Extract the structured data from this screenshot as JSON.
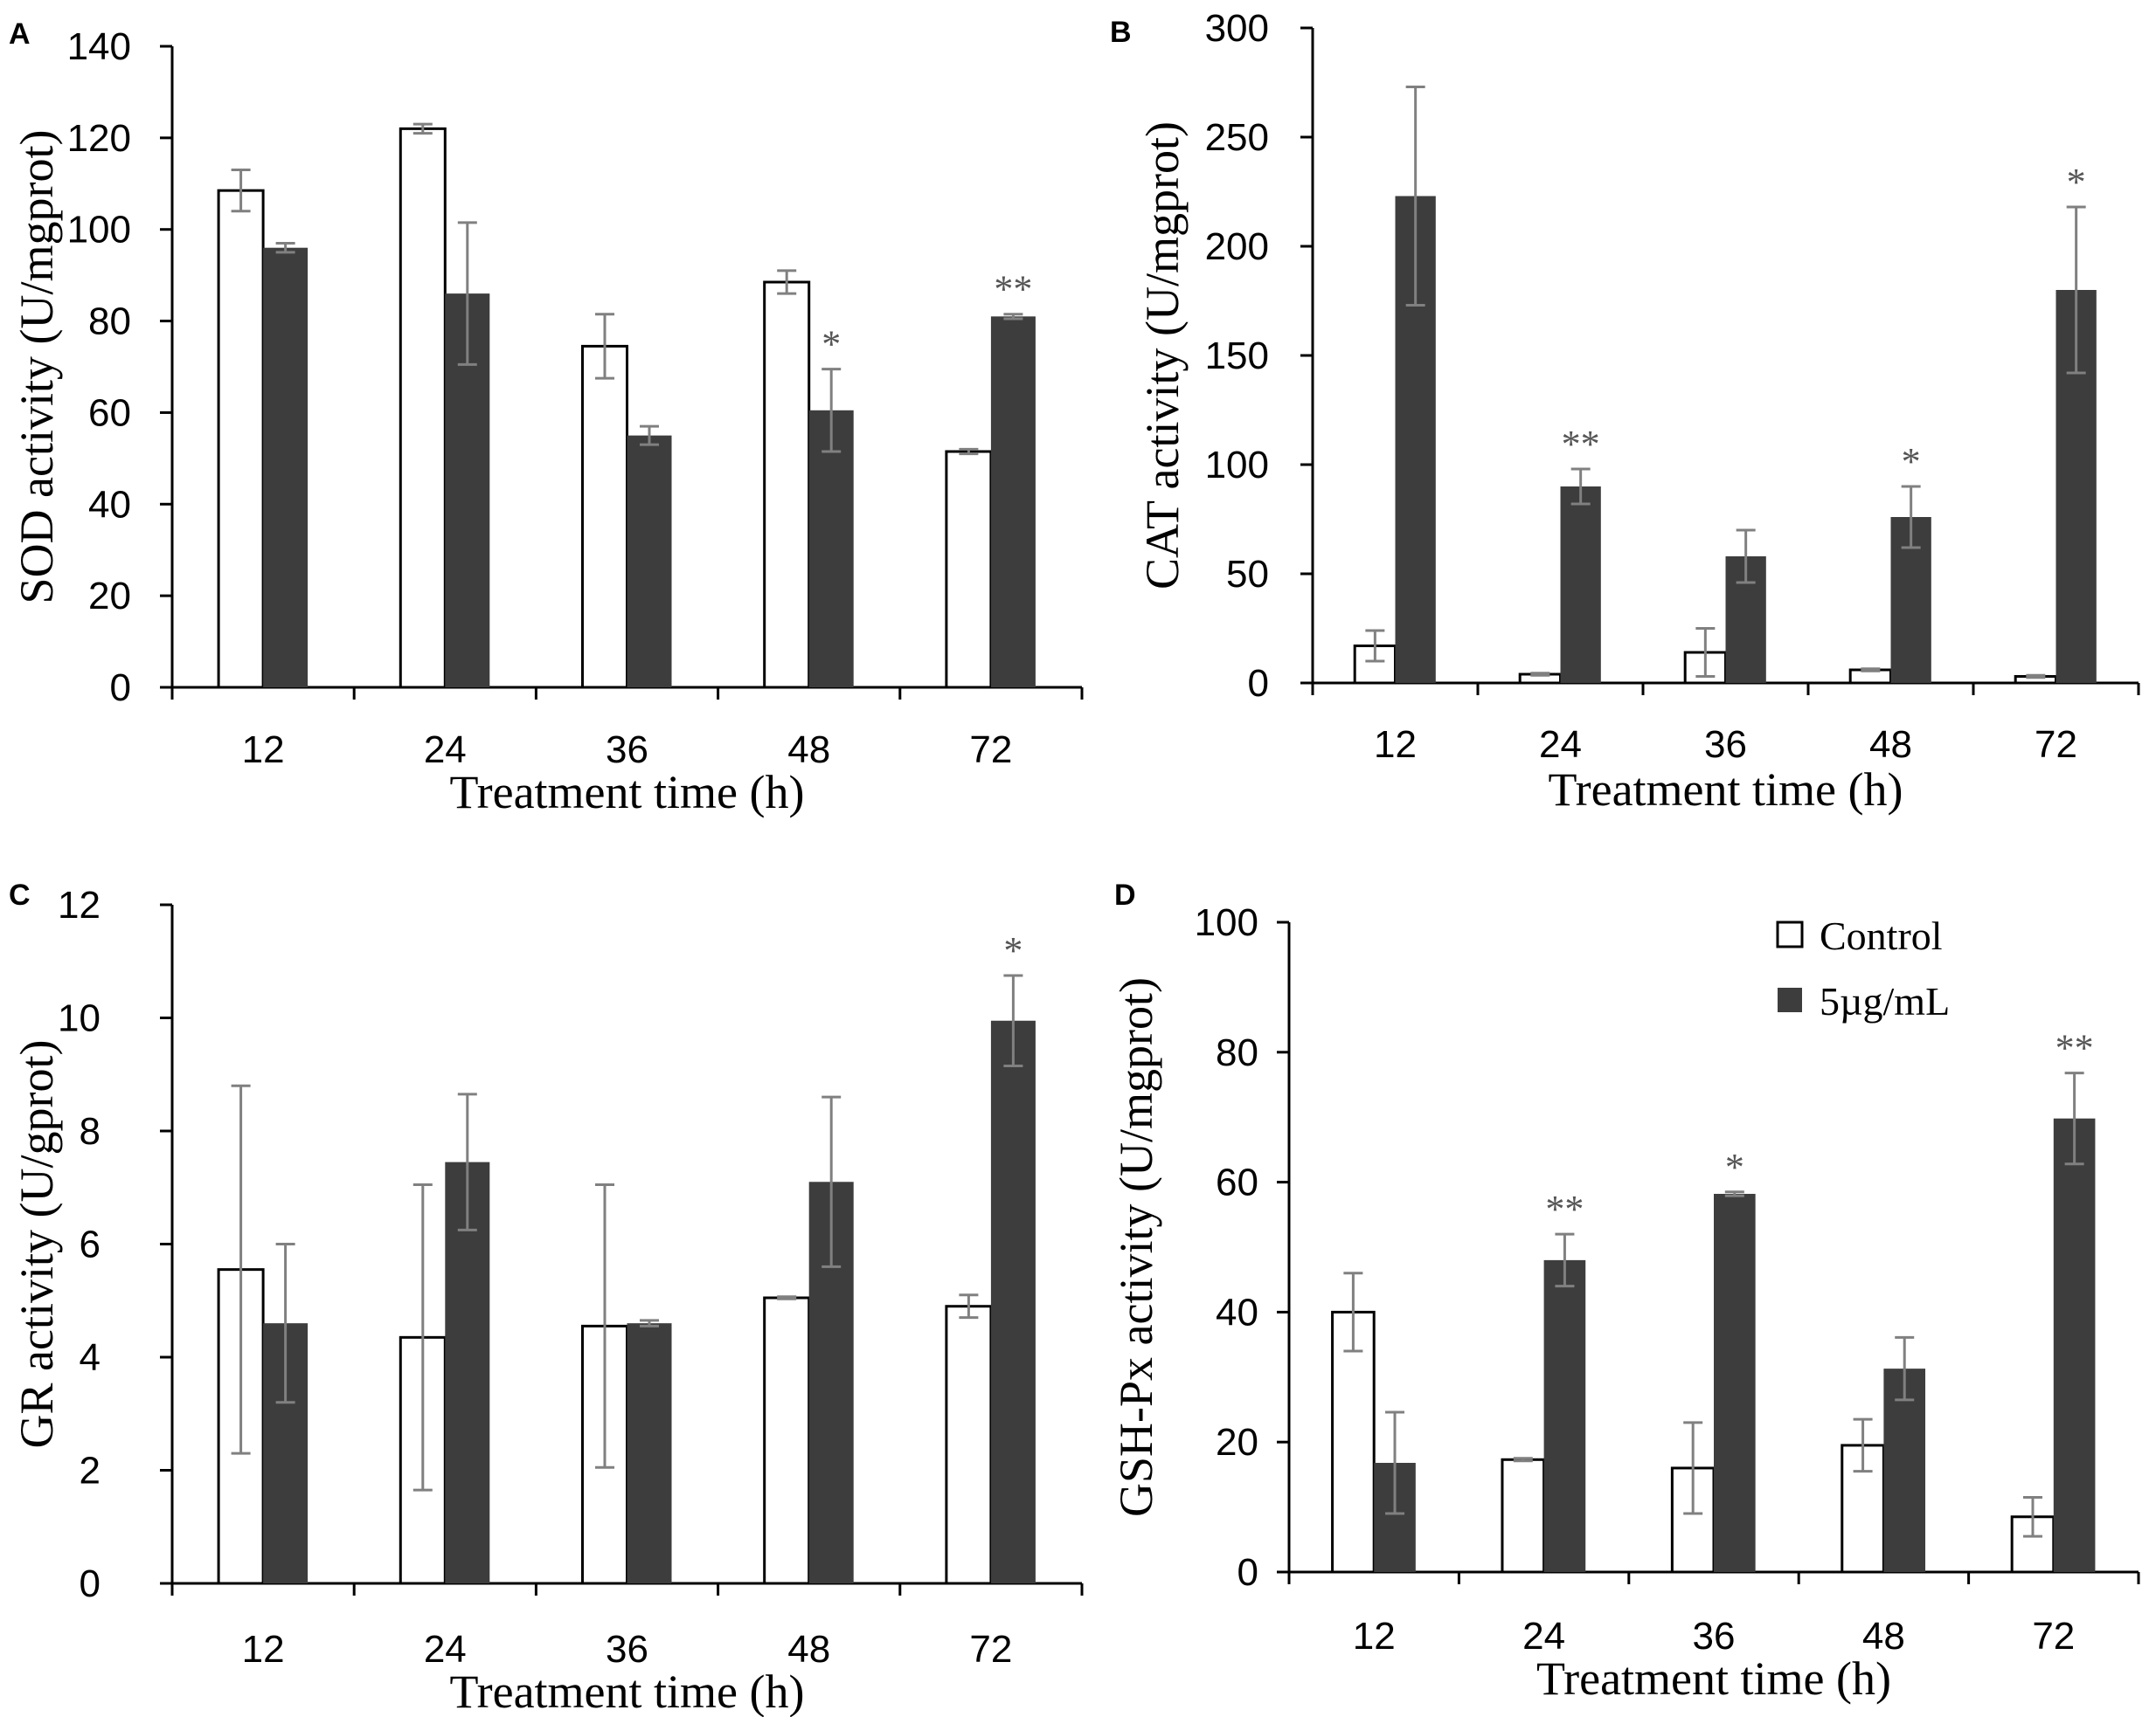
{
  "colors": {
    "control": "#ffffff",
    "treated": "#3d3d3d",
    "edge": "#000000",
    "error": "#808080",
    "sig": "#555555"
  },
  "legend": {
    "items": [
      "Control",
      "5µg/mL"
    ],
    "position": "top-right of panel D"
  },
  "chart_data": [
    {
      "panel": "A",
      "type": "bar",
      "categories": [
        "12",
        "24",
        "36",
        "48",
        "72"
      ],
      "xlabel": "Treatment time (h)",
      "ylabel": "SOD activity (U/mgprot)",
      "ylim": [
        0,
        140
      ],
      "yticks": [
        "0",
        "20",
        "40",
        "60",
        "80",
        "100",
        "120",
        "140"
      ],
      "series": [
        {
          "name": "Control",
          "values": [
            108.5,
            122,
            74.5,
            88.5,
            51.5
          ],
          "errors": [
            4.5,
            1,
            7,
            2.5,
            0.5
          ]
        },
        {
          "name": "5µg/mL",
          "values": [
            96,
            86,
            55,
            60.5,
            81
          ],
          "errors": [
            1,
            15.5,
            2,
            9,
            0.5
          ]
        }
      ],
      "significance": [
        "",
        "",
        "",
        "*",
        "**"
      ]
    },
    {
      "panel": "B",
      "type": "bar",
      "categories": [
        "12",
        "24",
        "36",
        "48",
        "72"
      ],
      "xlabel": "Treatment time (h)",
      "ylabel": "CAT activity (U/mgprot)",
      "ylim": [
        0,
        300
      ],
      "yticks": [
        "0",
        "50",
        "100",
        "150",
        "200",
        "250",
        "300"
      ],
      "series": [
        {
          "name": "Control",
          "values": [
            17,
            4,
            14,
            6,
            3
          ],
          "errors": [
            7,
            0.5,
            11,
            0.5,
            0.5
          ]
        },
        {
          "name": "5µg/mL",
          "values": [
            223,
            90,
            58,
            76,
            180
          ],
          "errors": [
            50,
            8,
            12,
            14,
            38
          ]
        }
      ],
      "significance": [
        "",
        "**",
        "",
        "*",
        "*"
      ]
    },
    {
      "panel": "C",
      "type": "bar",
      "categories": [
        "12",
        "24",
        "36",
        "48",
        "72"
      ],
      "xlabel": "Treatment time (h)",
      "ylabel": "GR activity (U/gprot)",
      "ylim": [
        0,
        12
      ],
      "yticks": [
        "0",
        "2",
        "4",
        "6",
        "8",
        "10",
        "12"
      ],
      "series": [
        {
          "name": "Control",
          "values": [
            5.55,
            4.35,
            4.55,
            5.05,
            4.9
          ],
          "errors": [
            3.25,
            2.7,
            2.5,
            0.02,
            0.2
          ]
        },
        {
          "name": "5µg/mL",
          "values": [
            4.6,
            7.45,
            4.6,
            7.1,
            9.95
          ],
          "errors": [
            1.4,
            1.2,
            0.05,
            1.5,
            0.8
          ]
        }
      ],
      "significance": [
        "",
        "",
        "",
        "",
        "*"
      ]
    },
    {
      "panel": "D",
      "type": "bar",
      "categories": [
        "12",
        "24",
        "36",
        "48",
        "72"
      ],
      "xlabel": "Treatment time (h)",
      "ylabel": "GSH-Px activity (U/mgprot)",
      "ylim": [
        0,
        100
      ],
      "yticks": [
        "0",
        "20",
        "40",
        "60",
        "80",
        "100"
      ],
      "series": [
        {
          "name": "Control",
          "values": [
            40,
            17.3,
            16,
            19.5,
            8.5
          ],
          "errors": [
            6,
            0.2,
            7,
            4,
            3
          ]
        },
        {
          "name": "5µg/mL",
          "values": [
            16.8,
            48,
            58.2,
            31.3,
            69.8
          ],
          "errors": [
            7.8,
            4,
            0.3,
            4.8,
            7
          ]
        }
      ],
      "significance": [
        "",
        "**",
        "*",
        "",
        "**"
      ]
    }
  ]
}
